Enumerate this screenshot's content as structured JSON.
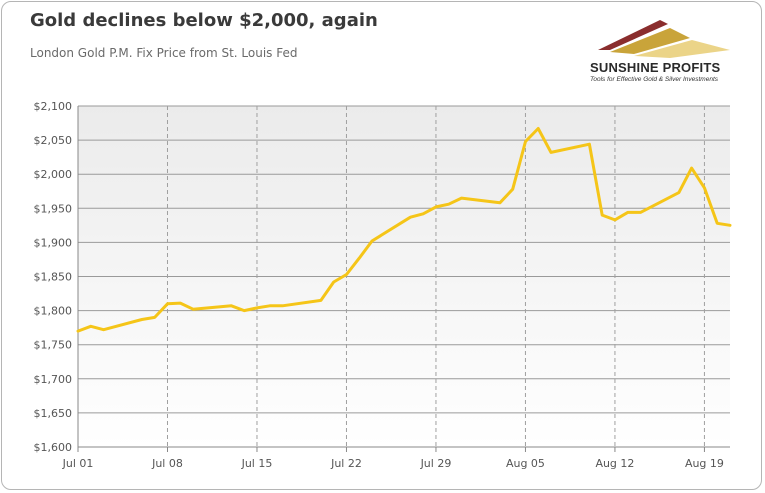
{
  "title": "Gold declines below $2,000, again",
  "subtitle": "London Gold P.M. Fix Price from St. Louis Fed",
  "logo": {
    "name": "SUNSHINE PROFITS",
    "tagline": "Tools for Effective Gold & Silver Investments",
    "colors": [
      "#8a2d2d",
      "#c9a43a",
      "#e6c96a"
    ]
  },
  "chart_data": {
    "type": "line",
    "title": "Gold declines below $2,000, again",
    "subtitle": "London Gold P.M. Fix Price from St. Louis Fed",
    "xlabel": "",
    "ylabel": "",
    "ylim": [
      1600,
      2100
    ],
    "yticks": [
      1600,
      1650,
      1700,
      1750,
      1800,
      1850,
      1900,
      1950,
      2000,
      2050,
      2100
    ],
    "ytick_labels": [
      "$1,600",
      "$1,650",
      "$1,700",
      "$1,750",
      "$1,800",
      "$1,850",
      "$1,900",
      "$1,950",
      "$2,000",
      "$2,050",
      "$2,100"
    ],
    "xticks": [
      "2020-07-01",
      "2020-07-08",
      "2020-07-15",
      "2020-07-22",
      "2020-07-29",
      "2020-08-05",
      "2020-08-12",
      "2020-08-19"
    ],
    "xtick_labels": [
      "Jul 01",
      "Jul 08",
      "Jul 15",
      "Jul 22",
      "Jul 29",
      "Aug 05",
      "Aug 12",
      "Aug 19"
    ],
    "xlim": [
      "2020-07-01",
      "2020-08-21"
    ],
    "grid": {
      "horizontal": "solid",
      "vertical": "dashed"
    },
    "line_color": "#f5c518",
    "series": [
      {
        "x": [
          "2020-07-01",
          "2020-07-02",
          "2020-07-03",
          "2020-07-06",
          "2020-07-07",
          "2020-07-08",
          "2020-07-09",
          "2020-07-10",
          "2020-07-13",
          "2020-07-14",
          "2020-07-15",
          "2020-07-16",
          "2020-07-17",
          "2020-07-20",
          "2020-07-21",
          "2020-07-22",
          "2020-07-23",
          "2020-07-24",
          "2020-07-27",
          "2020-07-28",
          "2020-07-29",
          "2020-07-30",
          "2020-07-31",
          "2020-08-03",
          "2020-08-04",
          "2020-08-05",
          "2020-08-06",
          "2020-08-07",
          "2020-08-10",
          "2020-08-11",
          "2020-08-12",
          "2020-08-13",
          "2020-08-14",
          "2020-08-17",
          "2020-08-18",
          "2020-08-19",
          "2020-08-20",
          "2020-08-21"
        ],
        "values": [
          1770,
          1777,
          1772,
          1787,
          1790,
          1810,
          1811,
          1802,
          1807,
          1800,
          1804,
          1807,
          1807,
          1815,
          1842,
          1853,
          1877,
          1902,
          1937,
          1942,
          1952,
          1956,
          1965,
          1958,
          1978,
          2048,
          2067,
          2032,
          2044,
          1940,
          1933,
          1944,
          1944,
          1973,
          2009,
          1980,
          1928,
          1925
        ]
      }
    ]
  }
}
